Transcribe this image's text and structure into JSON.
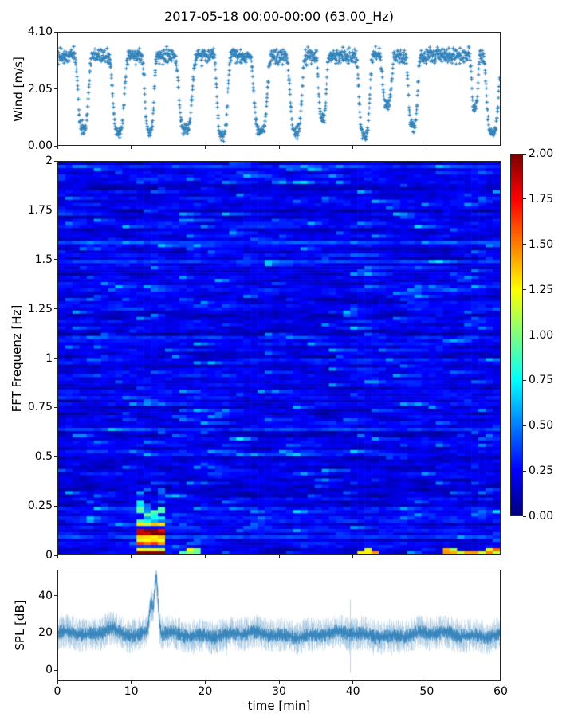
{
  "figure": {
    "title": "2017-05-18 00:00-00:00 (63.00_Hz)",
    "background_color": "#ffffff",
    "spine_color": "#262626",
    "tick_color": "#262626",
    "text_color": "#000000"
  },
  "chart_data": [
    {
      "id": "wind-scatter",
      "type": "scatter",
      "ylabel": "Wind [m/s]",
      "xlim": [
        0,
        60
      ],
      "ylim": [
        0,
        4.1
      ],
      "yticks": [
        0.0,
        2.05,
        4.1
      ],
      "ytick_labels": [
        "0.00",
        "2.05",
        "4.10"
      ],
      "xticks": [
        0,
        10,
        20,
        30,
        40,
        50,
        60
      ],
      "marker": "plus",
      "marker_color": "#1f77b4",
      "n_points": 1450,
      "seed": 20170518,
      "wind_high_mean": 3.25,
      "wind_high_spread": 0.34,
      "lulls": [
        {
          "t": 3.4,
          "w": 0.8,
          "low": 0.6
        },
        {
          "t": 8.2,
          "w": 0.9,
          "low": 0.5
        },
        {
          "t": 12.4,
          "w": 0.7,
          "low": 0.5
        },
        {
          "t": 17.3,
          "w": 1.0,
          "low": 0.55
        },
        {
          "t": 22.3,
          "w": 0.8,
          "low": 0.35
        },
        {
          "t": 27.5,
          "w": 1.0,
          "low": 0.5
        },
        {
          "t": 32.3,
          "w": 0.9,
          "low": 0.5
        },
        {
          "t": 35.9,
          "w": 0.6,
          "low": 1.0
        },
        {
          "t": 41.6,
          "w": 0.8,
          "low": 0.35
        },
        {
          "t": 44.7,
          "w": 0.7,
          "low": 1.5
        },
        {
          "t": 48.2,
          "w": 0.7,
          "low": 0.7
        },
        {
          "t": 56.6,
          "w": 0.5,
          "low": 1.4
        },
        {
          "t": 59.0,
          "w": 0.9,
          "low": 0.45
        }
      ]
    },
    {
      "id": "spectrogram",
      "type": "heatmap",
      "ylabel": "FFT Frequenz [Hz]",
      "xlim": [
        0,
        60
      ],
      "ylim": [
        0,
        2
      ],
      "yticks": [
        0,
        0.25,
        0.5,
        0.75,
        1,
        1.25,
        1.5,
        1.75,
        2
      ],
      "ytick_labels": [
        "0",
        "0.25",
        "0.5",
        "0.75",
        "1",
        "1.25",
        "1.5",
        "1.75",
        "2"
      ],
      "xticks": [
        0,
        10,
        20,
        30,
        40,
        50,
        60
      ],
      "colormap": "jet",
      "clim": [
        0.0,
        2.0
      ],
      "n_time_bins": 62,
      "n_freq_bins": 124,
      "seed": 63,
      "background": {
        "row_base_min": 0.12,
        "row_base_spread": 0.15,
        "cell_noise": 0.16,
        "bright_streak_chance": 0.045,
        "bright_streak_boost": 0.55
      },
      "event": {
        "t_range": [
          10.6,
          14.6
        ],
        "f_range": [
          0,
          0.16
        ],
        "levels": [
          1.25,
          0.3,
          2.0,
          2.0,
          1.35,
          1.3,
          1.6,
          0.35,
          1.2,
          2.0
        ],
        "plume": {
          "t_range": [
            10.8,
            14.9
          ],
          "f_range": [
            0.16,
            0.34
          ],
          "max_level": 1.3
        }
      },
      "bottom_row_segments": [
        {
          "t_range": [
            16.3,
            18.9
          ],
          "level": 1.05
        },
        {
          "t_range": [
            40.8,
            44.0
          ],
          "level": 1.25
        },
        {
          "t_range": [
            52.6,
            60.0
          ],
          "level": 1.3
        }
      ],
      "colorbar": {
        "ticks": [
          2.0,
          1.75,
          1.5,
          1.25,
          1.0,
          0.75,
          0.5,
          0.25,
          0.0
        ],
        "tick_labels": [
          "2.00",
          "1.75",
          "1.50",
          "1.25",
          "1.00",
          "0.75",
          "0.50",
          "0.25",
          "0.00"
        ]
      }
    },
    {
      "id": "spl-line",
      "type": "line",
      "ylabel": "SPL [dB]",
      "xlabel": "time [min]",
      "xlim": [
        0,
        60
      ],
      "ylim": [
        -6,
        54
      ],
      "yticks": [
        0,
        20,
        40
      ],
      "ytick_labels": [
        "0",
        "20",
        "40"
      ],
      "xticks": [
        0,
        10,
        20,
        30,
        40,
        50,
        60
      ],
      "xtick_labels": [
        "0",
        "10",
        "20",
        "30",
        "40",
        "50",
        "60"
      ],
      "line_color": "#1f77b4",
      "seed": 811,
      "baseline": {
        "mean_db": 19,
        "core_halfwidth_db": 3.5,
        "fuzz_halfwidth_db": 8
      },
      "events": [
        {
          "t": 13.25,
          "peak_db": 50,
          "width_min": 0.35,
          "type": "main-peak"
        },
        {
          "t": 12.55,
          "peak_db": 34,
          "width_min": 0.3,
          "type": "pre-peak"
        },
        {
          "t": 7.0,
          "peak_db": 24,
          "width_min": 1.2,
          "type": "broad-bump"
        },
        {
          "t": 39.7,
          "peak_db": 38,
          "width_min": 0.05,
          "type": "thin-outlier"
        }
      ]
    }
  ]
}
